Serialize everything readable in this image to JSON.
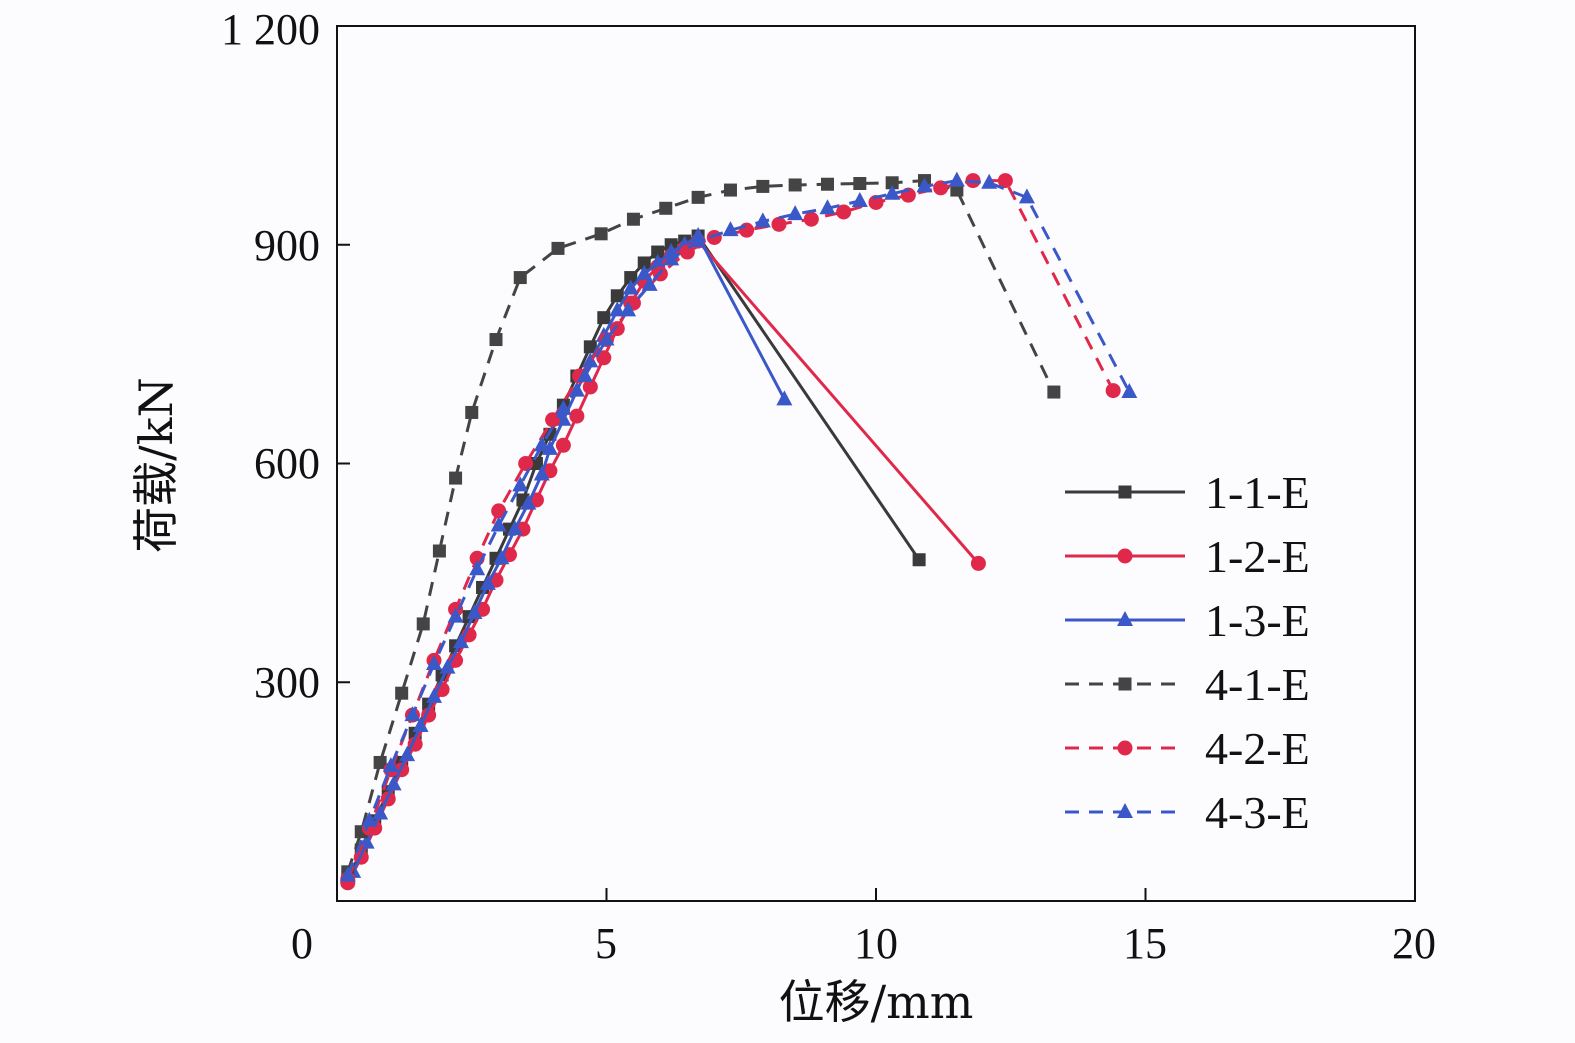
{
  "chart_data": {
    "type": "line",
    "xlabel": "位移/mm",
    "ylabel": "荷载/kN",
    "xlim": [
      0,
      20
    ],
    "ylim": [
      0,
      1200
    ],
    "x_ticks": [
      0,
      5,
      10,
      15,
      20
    ],
    "x_tick_labels": [
      "0",
      "5",
      "10",
      "15",
      "20"
    ],
    "y_ticks": [
      300,
      600,
      900,
      1200
    ],
    "y_tick_labels": [
      "300",
      "600",
      "900",
      "1 200"
    ],
    "grid": false,
    "legend_position": "right",
    "series": [
      {
        "name": "1-1-E",
        "color": "#3a3a3a",
        "dash": "solid",
        "marker": "square",
        "x": [
          0.2,
          0.45,
          0.7,
          0.95,
          1.2,
          1.45,
          1.7,
          1.95,
          2.2,
          2.45,
          2.7,
          2.95,
          3.2,
          3.45,
          3.7,
          3.95,
          4.2,
          4.45,
          4.7,
          4.95,
          5.2,
          5.45,
          5.7,
          5.95,
          6.2,
          6.45,
          6.7,
          10.8
        ],
        "y": [
          28,
          70,
          110,
          150,
          190,
          230,
          270,
          310,
          350,
          390,
          430,
          470,
          510,
          550,
          600,
          640,
          680,
          720,
          760,
          800,
          830,
          855,
          875,
          890,
          900,
          905,
          912,
          468
        ]
      },
      {
        "name": "1-2-E",
        "color": "#e0284a",
        "dash": "solid",
        "marker": "circle",
        "x": [
          0.2,
          0.45,
          0.7,
          0.95,
          1.2,
          1.45,
          1.7,
          1.95,
          2.2,
          2.45,
          2.7,
          2.95,
          3.2,
          3.45,
          3.7,
          3.95,
          4.2,
          4.45,
          4.7,
          4.95,
          5.2,
          5.45,
          5.7,
          5.95,
          6.2,
          6.45,
          6.7,
          11.9
        ],
        "y": [
          25,
          60,
          100,
          140,
          180,
          215,
          255,
          290,
          330,
          365,
          400,
          440,
          475,
          510,
          550,
          590,
          625,
          665,
          705,
          745,
          785,
          820,
          850,
          870,
          885,
          895,
          905,
          463
        ]
      },
      {
        "name": "1-3-E",
        "color": "#3a58c8",
        "dash": "solid",
        "marker": "triangle",
        "x": [
          0.3,
          0.55,
          0.8,
          1.05,
          1.3,
          1.55,
          1.8,
          2.05,
          2.3,
          2.55,
          2.8,
          3.05,
          3.3,
          3.55,
          3.8,
          3.95,
          4.2,
          4.45,
          4.7,
          4.95,
          5.2,
          5.45,
          5.7,
          5.95,
          6.2,
          6.45,
          6.7,
          8.3
        ],
        "y": [
          40,
          80,
          120,
          160,
          200,
          240,
          280,
          320,
          355,
          395,
          435,
          470,
          510,
          545,
          585,
          620,
          660,
          700,
          740,
          775,
          810,
          840,
          860,
          875,
          890,
          900,
          912,
          688
        ]
      },
      {
        "name": "4-1-E",
        "color": "#444444",
        "dash": "dashed",
        "marker": "square",
        "x": [
          0.2,
          0.45,
          0.8,
          1.2,
          1.6,
          1.9,
          2.2,
          2.5,
          2.95,
          3.4,
          4.1,
          4.9,
          5.5,
          6.1,
          6.7,
          7.3,
          7.9,
          8.5,
          9.1,
          9.7,
          10.3,
          10.9,
          11.5,
          13.3
        ],
        "y": [
          40,
          95,
          190,
          285,
          380,
          480,
          580,
          670,
          770,
          855,
          895,
          915,
          935,
          950,
          965,
          975,
          980,
          982,
          983,
          984,
          985,
          988,
          975,
          698
        ]
      },
      {
        "name": "4-2-E",
        "color": "#e0284a",
        "dash": "dashed",
        "marker": "circle",
        "x": [
          0.2,
          0.6,
          1.0,
          1.4,
          1.8,
          2.2,
          2.6,
          3.0,
          3.5,
          4.0,
          4.5,
          5.0,
          5.5,
          6.0,
          6.5,
          7.0,
          7.6,
          8.2,
          8.8,
          9.4,
          10.0,
          10.6,
          11.2,
          11.8,
          12.4,
          14.4
        ],
        "y": [
          30,
          100,
          180,
          255,
          330,
          400,
          470,
          535,
          600,
          660,
          720,
          770,
          820,
          860,
          890,
          910,
          920,
          928,
          935,
          945,
          958,
          968,
          978,
          988,
          988,
          700
        ]
      },
      {
        "name": "4-3-E",
        "color": "#3a58c8",
        "dash": "dashed",
        "marker": "triangle",
        "x": [
          0.2,
          0.6,
          1.0,
          1.4,
          1.8,
          2.2,
          2.6,
          3.0,
          3.4,
          3.8,
          4.2,
          4.6,
          5.0,
          5.4,
          5.8,
          6.2,
          6.7,
          7.3,
          7.9,
          8.5,
          9.1,
          9.7,
          10.3,
          10.9,
          11.5,
          12.1,
          12.8,
          14.7
        ],
        "y": [
          35,
          110,
          185,
          255,
          325,
          390,
          455,
          515,
          570,
          625,
          675,
          720,
          770,
          810,
          845,
          880,
          905,
          920,
          932,
          942,
          950,
          960,
          970,
          980,
          988,
          985,
          965,
          698
        ]
      }
    ]
  }
}
